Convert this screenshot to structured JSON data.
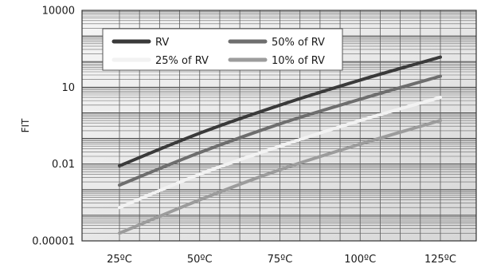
{
  "chart_data": {
    "type": "line",
    "title": "",
    "xlabel": "",
    "ylabel": "FIT",
    "y_scale": "log",
    "ylim": [
      1e-05,
      10000
    ],
    "y_ticks": [
      {
        "value": 10000,
        "label": "10000"
      },
      {
        "value": 10,
        "label": "10"
      },
      {
        "value": 0.01,
        "label": "0.01"
      },
      {
        "value": 1e-05,
        "label": "0.00001"
      }
    ],
    "x": [
      25,
      50,
      75,
      100,
      125
    ],
    "x_tick_labels": [
      "25ºC",
      "50ºC",
      "75ºC",
      "100ºC",
      "125ºC"
    ],
    "grid": true,
    "legend_position": "top-left",
    "background_color": "#e4e4e4",
    "series": [
      {
        "name": "RV",
        "color": "#3a3a3a",
        "values": [
          0.0085,
          0.16,
          2.0,
          19,
          150
        ]
      },
      {
        "name": "50% of RV",
        "color": "#6e6e6e",
        "values": [
          0.0015,
          0.028,
          0.37,
          3.4,
          27
        ]
      },
      {
        "name": "25% of RV",
        "color": "#f2f2f2",
        "values": [
          0.0002,
          0.004,
          0.05,
          0.5,
          4
        ]
      },
      {
        "name": "10% of RV",
        "color": "#9c9c9c",
        "values": [
          2e-05,
          0.0004,
          0.006,
          0.06,
          0.5
        ]
      }
    ]
  }
}
